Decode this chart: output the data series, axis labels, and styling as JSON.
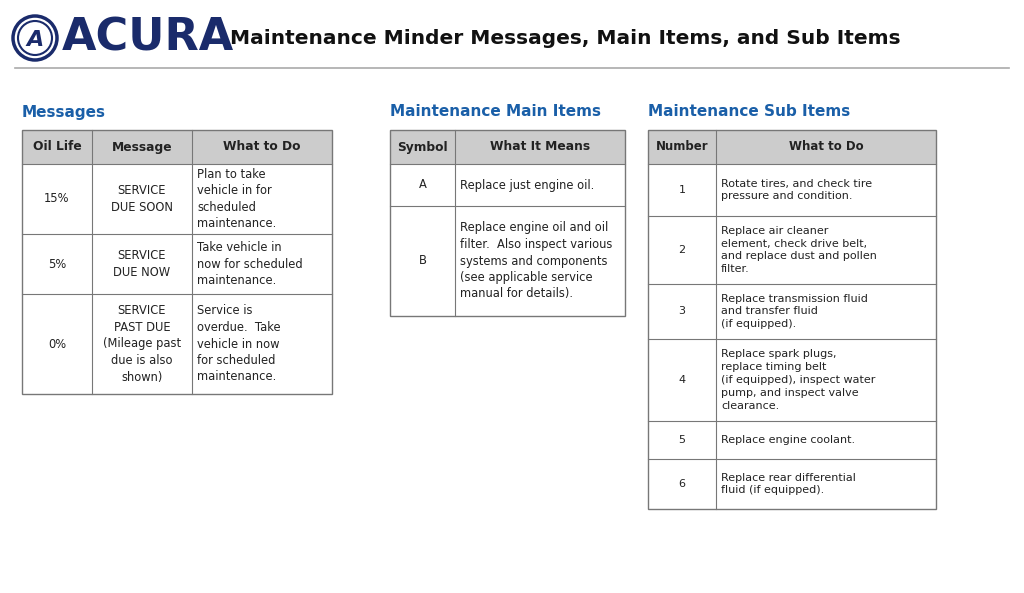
{
  "title": "Maintenance Minder Messages, Main Items, and Sub Items",
  "acura_color": "#1a2b6b",
  "section_title_color": "#1a5fa8",
  "header_bg": "#cccccc",
  "border_color": "#777777",
  "text_color": "#222222",
  "background_color": "#ffffff",
  "section1_title": "Messages",
  "section1_headers": [
    "Oil Life",
    "Message",
    "What to Do"
  ],
  "section1_rows": [
    [
      "15%",
      "SERVICE\nDUE SOON",
      "Plan to take\nvehicle in for\nscheduled\nmaintenance."
    ],
    [
      "5%",
      "SERVICE\nDUE NOW",
      "Take vehicle in\nnow for scheduled\nmaintenance."
    ],
    [
      "0%",
      "SERVICE\nPAST DUE\n(Mileage past\ndue is also\nshown)",
      "Service is\noverdue.  Take\nvehicle in now\nfor scheduled\nmaintenance."
    ]
  ],
  "section2_title": "Maintenance Main Items",
  "section2_headers": [
    "Symbol",
    "What It Means"
  ],
  "section2_rows": [
    [
      "A",
      "Replace just engine oil."
    ],
    [
      "B",
      "Replace engine oil and oil\nfilter.  Also inspect various\nsystems and components\n(see applicable service\nmanual for details)."
    ]
  ],
  "section3_title": "Maintenance Sub Items",
  "section3_headers": [
    "Number",
    "What to Do"
  ],
  "section3_rows": [
    [
      "1",
      "Rotate tires, and check tire\npressure and condition."
    ],
    [
      "2",
      "Replace air cleaner\nelement, check drive belt,\nand replace dust and pollen\nfilter."
    ],
    [
      "3",
      "Replace transmission fluid\nand transfer fluid\n(if equipped)."
    ],
    [
      "4",
      "Replace spark plugs,\nreplace timing belt\n(if equipped), inspect water\npump, and inspect valve\nclearance."
    ],
    [
      "5",
      "Replace engine coolant."
    ],
    [
      "6",
      "Replace rear differential\nfluid (if equipped)."
    ]
  ]
}
